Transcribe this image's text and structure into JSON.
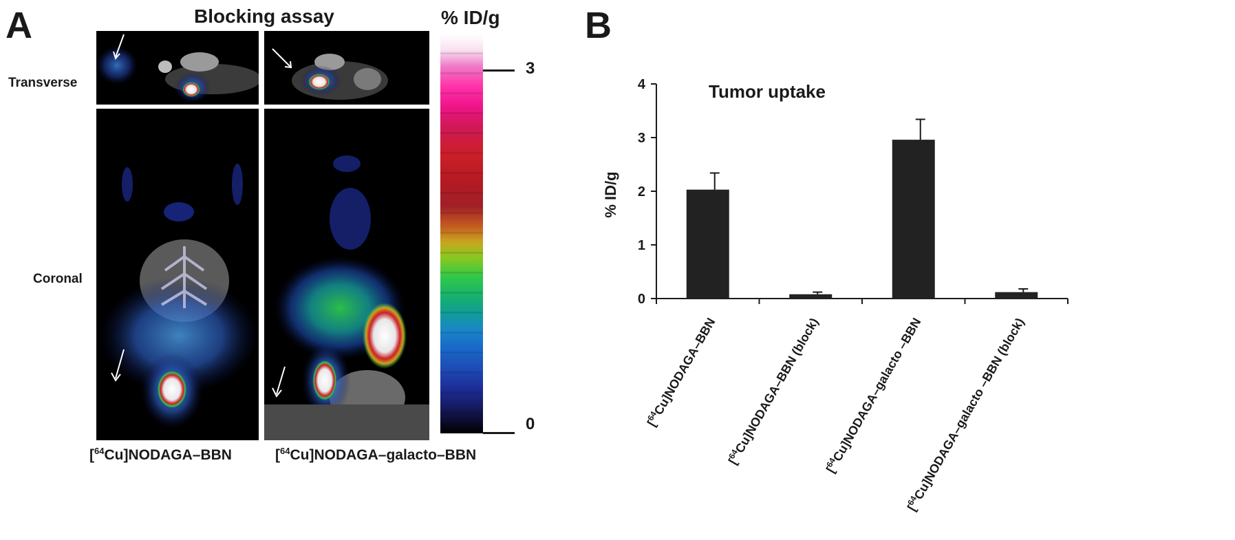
{
  "panel_a": {
    "letter": "A",
    "title": "Blocking assay",
    "row_labels": {
      "transverse": "Transverse",
      "coronal": "Coronal"
    },
    "column_labels": [
      {
        "prefix": "[",
        "sup": "64",
        "main": "Cu]NODAGA–BBN"
      },
      {
        "prefix": "[",
        "sup": "64",
        "main": "Cu]NODAGA–galacto–BBN"
      }
    ],
    "scale": {
      "label": "% ID/g",
      "max": "3",
      "min": "0"
    }
  },
  "panel_b": {
    "letter": "B"
  },
  "chart_data": {
    "type": "bar",
    "title": "Tumor uptake",
    "xlabel": "",
    "ylabel": "% ID/g",
    "ylim": [
      0,
      4
    ],
    "yticks": [
      0,
      1,
      2,
      3,
      4
    ],
    "grid": false,
    "categories": [
      [
        "[",
        "64",
        "Cu]NODAGA–BBN"
      ],
      [
        "[",
        "64",
        "Cu]NODAGA–BBN (block)"
      ],
      [
        "[",
        "64",
        "Cu]NODAGA–galacto –BBN"
      ],
      [
        "[",
        "64",
        "Cu]NODAGA–galacto –BBN (block)"
      ]
    ],
    "values": [
      2.03,
      0.08,
      2.96,
      0.12
    ],
    "errors": [
      0.31,
      0.04,
      0.38,
      0.06
    ],
    "bar_color": "#222222"
  }
}
